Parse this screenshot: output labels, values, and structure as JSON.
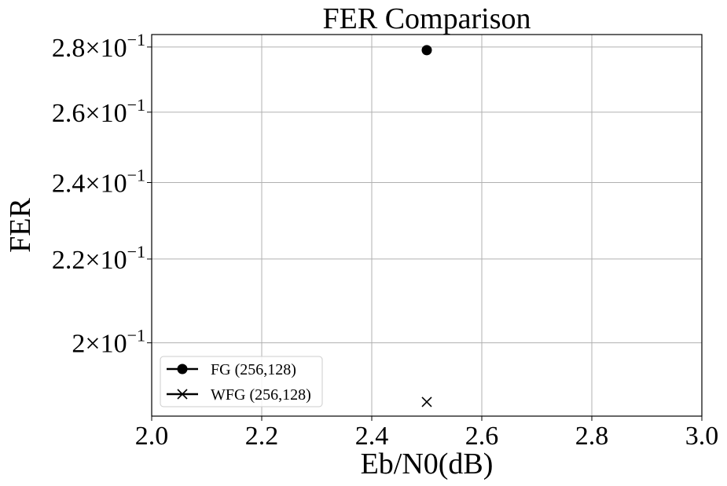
{
  "chart_data": {
    "type": "scatter",
    "title": "FER Comparison",
    "xlabel": "Eb/N0(dB)",
    "ylabel": "FER",
    "yscale": "log",
    "xlim": [
      2.0,
      3.0
    ],
    "ylim": [
      0.184,
      0.284
    ],
    "grid": true,
    "legend_position": "lower-left",
    "x_ticks": [
      {
        "value": 2.0,
        "label": "2.0"
      },
      {
        "value": 2.2,
        "label": "2.2"
      },
      {
        "value": 2.4,
        "label": "2.4"
      },
      {
        "value": 2.6,
        "label": "2.6"
      },
      {
        "value": 2.8,
        "label": "2.8"
      },
      {
        "value": 3.0,
        "label": "3.0"
      }
    ],
    "y_ticks": [
      {
        "value": 0.2,
        "mantissa": "2",
        "exponent": "−1"
      },
      {
        "value": 0.22,
        "mantissa": "2.2",
        "exponent": "−1"
      },
      {
        "value": 0.24,
        "mantissa": "2.4",
        "exponent": "−1"
      },
      {
        "value": 0.26,
        "mantissa": "2.6",
        "exponent": "−1"
      },
      {
        "value": 0.28,
        "mantissa": "2.8",
        "exponent": "−1"
      }
    ],
    "series": [
      {
        "name": "FG (256,128)",
        "marker": "circle",
        "color": "#000000",
        "x": [
          2.5
        ],
        "y": [
          0.279
        ]
      },
      {
        "name": "WFG (256,128)",
        "marker": "x",
        "color": "#000000",
        "x": [
          2.5
        ],
        "y": [
          0.187
        ]
      }
    ]
  }
}
